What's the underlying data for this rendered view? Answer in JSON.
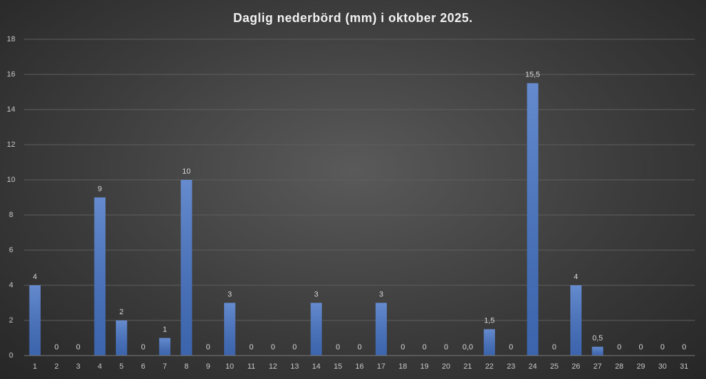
{
  "chart_data": {
    "type": "bar",
    "title": "Daglig nederbörd (mm) i oktober 2025.",
    "categories": [
      "1",
      "2",
      "3",
      "4",
      "5",
      "6",
      "7",
      "8",
      "9",
      "10",
      "11",
      "12",
      "13",
      "14",
      "15",
      "16",
      "17",
      "18",
      "19",
      "20",
      "21",
      "22",
      "23",
      "24",
      "25",
      "26",
      "27",
      "28",
      "29",
      "30",
      "31"
    ],
    "values": [
      4,
      0,
      0,
      9,
      2,
      0,
      1,
      10,
      0,
      3,
      0,
      0,
      0,
      3,
      0,
      0,
      3,
      0,
      0,
      0,
      0,
      1.5,
      0,
      15.5,
      0,
      4,
      0.5,
      0,
      0,
      0,
      0
    ],
    "value_labels": [
      "4",
      "0",
      "0",
      "9",
      "2",
      "0",
      "1",
      "10",
      "0",
      "3",
      "0",
      "0",
      "0",
      "3",
      "0",
      "0",
      "3",
      "0",
      "0",
      "0",
      "0,0",
      "1,5",
      "0",
      "15,5",
      "0",
      "4",
      "0,5",
      "0",
      "0",
      "0",
      "0"
    ],
    "color": "#4472c4",
    "ylim": [
      0,
      18
    ],
    "yticks": [
      0,
      2,
      4,
      6,
      8,
      10,
      12,
      14,
      16,
      18
    ],
    "grid": true
  }
}
